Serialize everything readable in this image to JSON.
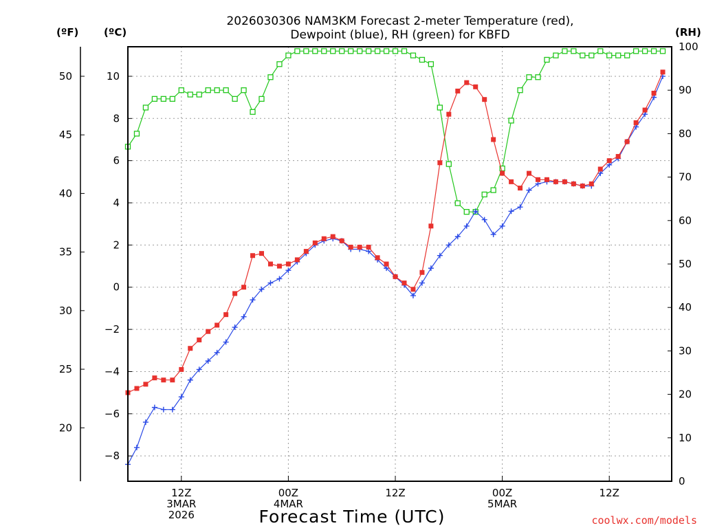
{
  "chart_data": {
    "type": "line",
    "title_line1": "2026030306 NAM3KM Forecast 2-meter Temperature (red),",
    "title_line2": "Dewpoint (blue), RH (green) for KBFD",
    "xlabel": "Forecast Time (UTC)",
    "credit": "coolwx.com/models",
    "units": {
      "fahrenheit": "(ºF)",
      "celsius": "(ºC)",
      "rh": "(RH)"
    },
    "xlim": [
      0,
      61
    ],
    "ylim_celsius": [
      -9.2,
      11.4
    ],
    "ylim_fahrenheit": [
      15.44,
      52.52
    ],
    "ylim_rh": [
      0,
      100
    ],
    "x_ticks": [
      {
        "x": 6,
        "line1": "12Z",
        "line2": "3MAR",
        "line3": "2026"
      },
      {
        "x": 18,
        "line1": "00Z",
        "line2": "4MAR",
        "line3": ""
      },
      {
        "x": 30,
        "line1": "12Z",
        "line2": "",
        "line3": ""
      },
      {
        "x": 42,
        "line1": "00Z",
        "line2": "5MAR",
        "line3": ""
      },
      {
        "x": 54,
        "line1": "12Z",
        "line2": "",
        "line3": ""
      }
    ],
    "celsius_ticks": [
      10,
      8,
      6,
      4,
      2,
      0,
      -2,
      -4,
      -6,
      -8
    ],
    "celsius_labels": [
      "10",
      "8",
      "6",
      "4",
      "2",
      "0",
      "−2",
      "−4",
      "−6",
      "−8"
    ],
    "fahrenheit_ticks": [
      50,
      45,
      40,
      35,
      30,
      25,
      20
    ],
    "fahrenheit_labels": [
      "50",
      "45",
      "40",
      "35",
      "30",
      "25",
      "20"
    ],
    "rh_ticks": [
      100,
      90,
      80,
      70,
      60,
      50,
      40,
      30,
      20,
      10,
      0
    ],
    "rh_labels": [
      "100",
      "90",
      "80",
      "70",
      "60",
      "50",
      "40",
      "30",
      "20",
      "10",
      "0"
    ],
    "series": [
      {
        "name": "Temperature",
        "axis": "celsius",
        "color": "#e8322e",
        "marker": "filled-square",
        "values": [
          -5.0,
          -4.8,
          -4.6,
          -4.3,
          -4.4,
          -4.4,
          -3.9,
          -2.9,
          -2.5,
          -2.1,
          -1.8,
          -1.3,
          -0.3,
          -0.0,
          1.5,
          1.6,
          1.1,
          1.0,
          1.1,
          1.3,
          1.7,
          2.1,
          2.3,
          2.4,
          2.2,
          1.9,
          1.9,
          1.9,
          1.4,
          1.1,
          0.5,
          0.2,
          -0.1,
          0.7,
          2.9,
          5.9,
          8.2,
          9.3,
          9.7,
          9.5,
          8.9,
          7.0,
          5.4,
          5.0,
          4.7,
          5.4,
          5.1,
          5.1,
          5.0,
          5.0,
          4.9,
          4.8,
          4.9,
          5.6,
          6.0,
          6.2,
          6.9,
          7.8,
          8.4,
          9.2,
          10.2
        ]
      },
      {
        "name": "Dewpoint",
        "axis": "celsius",
        "color": "#2848e6",
        "marker": "plus",
        "values": [
          -8.4,
          -7.6,
          -6.4,
          -5.7,
          -5.8,
          -5.8,
          -5.2,
          -4.4,
          -3.9,
          -3.5,
          -3.1,
          -2.6,
          -1.9,
          -1.4,
          -0.6,
          -0.1,
          0.2,
          0.4,
          0.8,
          1.2,
          1.6,
          2.0,
          2.2,
          2.3,
          2.2,
          1.8,
          1.8,
          1.7,
          1.3,
          0.9,
          0.5,
          0.1,
          -0.4,
          0.2,
          0.9,
          1.5,
          2.0,
          2.4,
          2.9,
          3.6,
          3.2,
          2.5,
          2.9,
          3.6,
          3.8,
          4.6,
          4.9,
          5.0,
          5.0,
          5.0,
          4.9,
          4.8,
          4.8,
          5.4,
          5.8,
          6.1,
          6.9,
          7.6,
          8.2,
          9.0,
          10.0
        ]
      },
      {
        "name": "RH",
        "axis": "rh",
        "color": "#22c71c",
        "marker": "open-square",
        "values": [
          77,
          80,
          86,
          88,
          88,
          88,
          90,
          89,
          89,
          90,
          90,
          90,
          88,
          90,
          85,
          88,
          93,
          96,
          98,
          99,
          99,
          99,
          99,
          99,
          99,
          99,
          99,
          99,
          99,
          99,
          99,
          99,
          98,
          97,
          96,
          86,
          73,
          64,
          62,
          62,
          66,
          67,
          72,
          83,
          90,
          93,
          93,
          97,
          98,
          99,
          99,
          98,
          98,
          99,
          98,
          98,
          98,
          99,
          99,
          99,
          99
        ]
      }
    ]
  }
}
